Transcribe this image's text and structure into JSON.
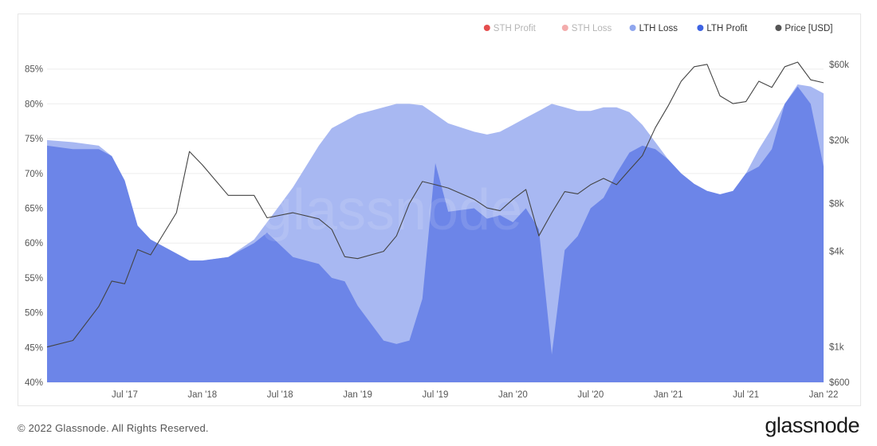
{
  "chart_data": {
    "type": "area",
    "watermark": "glassnode",
    "x_ticks": [
      "Jul '17",
      "Jan '18",
      "Jul '18",
      "Jan '19",
      "Jul '19",
      "Jan '20",
      "Jul '20",
      "Jan '21",
      "Jul '21",
      "Jan '22"
    ],
    "y_left_ticks": [
      "85%",
      "80%",
      "75%",
      "70%",
      "65%",
      "60%",
      "55%",
      "50%",
      "45%",
      "40%"
    ],
    "y_left_range": [
      40,
      86
    ],
    "y_right_scale": "log",
    "y_right_ticks": [
      {
        "value": 60000,
        "label": "$60k"
      },
      {
        "value": 20000,
        "label": "$20k"
      },
      {
        "value": 8000,
        "label": "$8k"
      },
      {
        "value": 4000,
        "label": "$4k"
      },
      {
        "value": 1000,
        "label": "$1k"
      },
      {
        "value": 600,
        "label": "$600"
      }
    ],
    "legend": [
      {
        "name": "STH Profit",
        "color": "#e23b3b",
        "dim": true
      },
      {
        "name": "STH Loss",
        "color": "#f2a3a3",
        "dim": true
      },
      {
        "name": "LTH Loss",
        "color": "#8fa6ee",
        "dim": false
      },
      {
        "name": "LTH Profit",
        "color": "#3d63e3",
        "dim": false
      },
      {
        "name": "Price [USD]",
        "color": "#555555",
        "dim": false
      }
    ],
    "x_dates": [
      "2017-01",
      "2017-03",
      "2017-05",
      "2017-06",
      "2017-07",
      "2017-08",
      "2017-09",
      "2017-11",
      "2017-12",
      "2018-01",
      "2018-03",
      "2018-05",
      "2018-06",
      "2018-08",
      "2018-10",
      "2018-11",
      "2018-12",
      "2019-01",
      "2019-03",
      "2019-04",
      "2019-05",
      "2019-06",
      "2019-07",
      "2019-08",
      "2019-10",
      "2019-11",
      "2019-12",
      "2020-01",
      "2020-02",
      "2020-03",
      "2020-04",
      "2020-05",
      "2020-06",
      "2020-07",
      "2020-08",
      "2020-09",
      "2020-10",
      "2020-11",
      "2020-12",
      "2021-01",
      "2021-02",
      "2021-03",
      "2021-04",
      "2021-05",
      "2021-06",
      "2021-07",
      "2021-08",
      "2021-09",
      "2021-10",
      "2021-11",
      "2021-12",
      "2022-01"
    ],
    "series": [
      {
        "name": "LTH Loss",
        "color": "#a8b8f2",
        "axis": "left",
        "values": [
          74.8,
          74.5,
          74.0,
          72.5,
          69.0,
          62.5,
          60.5,
          58.5,
          57.5,
          57.5,
          58.0,
          60.5,
          63.0,
          68.0,
          74.0,
          76.5,
          77.5,
          78.5,
          79.5,
          80.0,
          80.0,
          79.8,
          78.5,
          77.2,
          76.0,
          75.6,
          76.0,
          77.0,
          78.0,
          79.0,
          80.0,
          79.5,
          79.0,
          79.0,
          79.5,
          79.5,
          78.8,
          77.0,
          74.5,
          72.0,
          70.0,
          68.5,
          67.5,
          67.0,
          67.5,
          70.0,
          73.5,
          76.5,
          80.0,
          82.8,
          82.5,
          81.5
        ]
      },
      {
        "name": "LTH Profit",
        "color": "#6c85e8",
        "axis": "left",
        "values": [
          74.0,
          73.5,
          73.5,
          72.5,
          69.0,
          62.5,
          60.5,
          58.5,
          57.5,
          57.5,
          58.0,
          60.0,
          61.5,
          58.0,
          57.0,
          55.0,
          54.5,
          51.0,
          46.0,
          45.5,
          46.0,
          52.0,
          71.5,
          64.5,
          65.0,
          63.5,
          64.0,
          63.0,
          65.0,
          62.0,
          44.0,
          59.0,
          61.0,
          65.0,
          66.5,
          70.0,
          73.0,
          74.0,
          73.5,
          72.0,
          70.0,
          68.5,
          67.5,
          67.0,
          67.5,
          70.0,
          71.0,
          73.5,
          80.0,
          82.5,
          80.0,
          71.0
        ]
      },
      {
        "name": "Price [USD]",
        "color": "#444444",
        "axis": "right",
        "values": [
          1000,
          1100,
          1800,
          2600,
          2500,
          4100,
          3800,
          7000,
          17000,
          14000,
          9000,
          9000,
          6500,
          7000,
          6400,
          5500,
          3700,
          3600,
          4000,
          5000,
          8000,
          11000,
          10500,
          10000,
          8500,
          7500,
          7200,
          8500,
          9800,
          5000,
          7000,
          9500,
          9200,
          10500,
          11500,
          10500,
          13000,
          16000,
          24000,
          33000,
          47000,
          58000,
          60000,
          38000,
          34000,
          35000,
          47000,
          43000,
          58000,
          62000,
          48000,
          46000
        ]
      }
    ]
  },
  "footer": {
    "copyright": "© 2022 Glassnode. All Rights Reserved.",
    "brand": "glassnode"
  }
}
